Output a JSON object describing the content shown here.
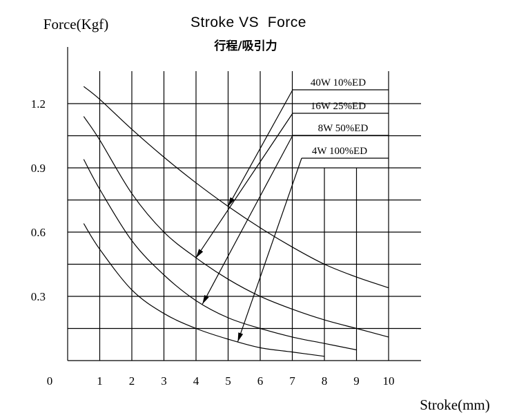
{
  "chart_data": {
    "type": "line",
    "title": "Stroke VS  Force",
    "subtitle": "行程/吸引力",
    "xlabel": "Stroke(mm)",
    "ylabel": "Force(Kgf)",
    "origin_label": "0",
    "xlim": [
      0,
      11
    ],
    "ylim": [
      0,
      1.35
    ],
    "xticks": [
      "1",
      "2",
      "3",
      "4",
      "5",
      "6",
      "7",
      "8",
      "9",
      "10"
    ],
    "yticks": [
      "0.3",
      "0.6",
      "0.9",
      "1.2"
    ],
    "grid": true,
    "legend_position": "top-right",
    "series": [
      {
        "name": "40W  10%ED",
        "x": [
          0.5,
          1,
          2,
          3,
          4,
          5,
          6,
          7,
          8,
          9,
          10
        ],
        "y": [
          1.28,
          1.22,
          1.08,
          0.95,
          0.83,
          0.72,
          0.62,
          0.53,
          0.45,
          0.39,
          0.34
        ]
      },
      {
        "name": "16W  25%ED",
        "x": [
          0.5,
          1,
          2,
          3,
          4,
          5,
          6,
          7,
          8,
          9,
          10
        ],
        "y": [
          1.14,
          1.03,
          0.78,
          0.6,
          0.48,
          0.38,
          0.3,
          0.24,
          0.19,
          0.15,
          0.11
        ]
      },
      {
        "name": "8W   50%ED",
        "x": [
          0.5,
          1,
          2,
          3,
          4,
          5,
          6,
          7,
          8,
          9
        ],
        "y": [
          0.94,
          0.8,
          0.56,
          0.4,
          0.28,
          0.2,
          0.15,
          0.11,
          0.08,
          0.05
        ]
      },
      {
        "name": "4W  100%ED",
        "x": [
          0.5,
          1,
          2,
          3,
          4,
          5,
          6,
          7,
          8
        ],
        "y": [
          0.64,
          0.52,
          0.33,
          0.22,
          0.15,
          0.1,
          0.06,
          0.04,
          0.02
        ]
      }
    ]
  }
}
